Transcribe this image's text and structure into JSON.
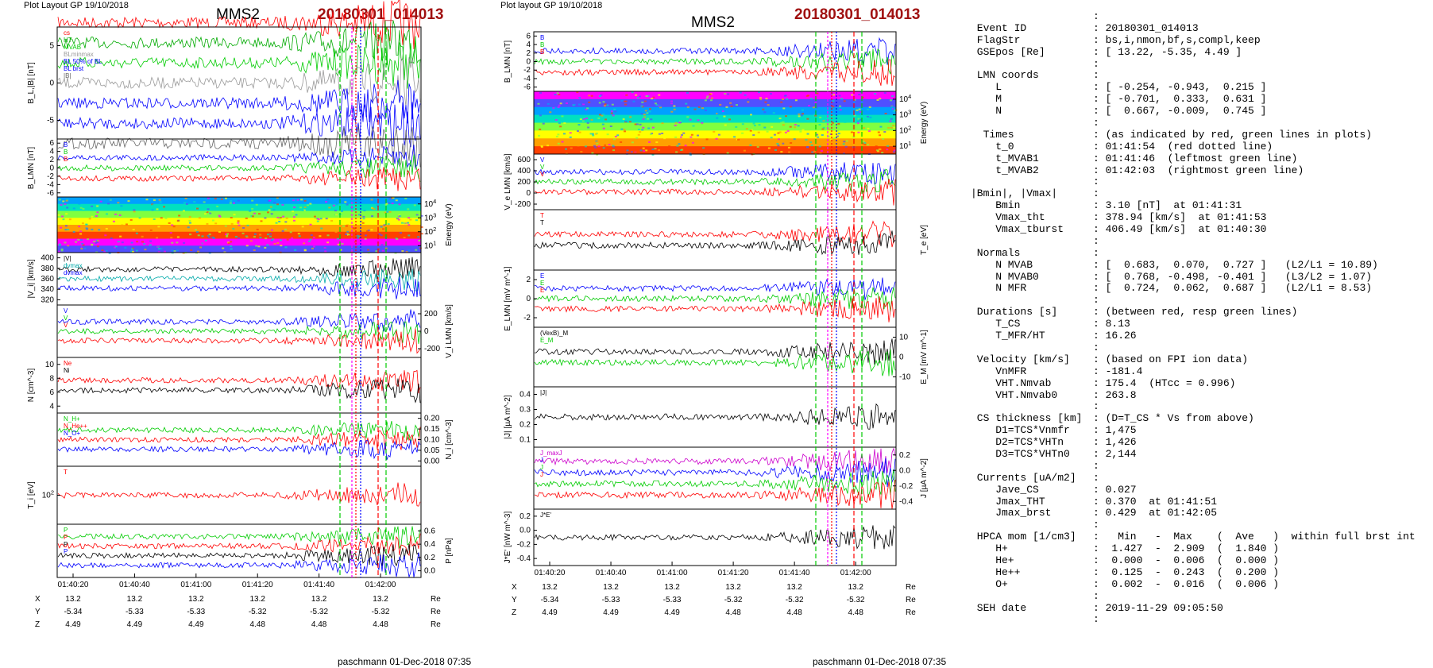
{
  "left": {
    "layout_label": "Plot Layout GP 19/10/2018",
    "spacecraft": "MMS2",
    "event": "20180301_014013",
    "footer": "paschmann 01-Dec-2018 07:35",
    "panels": [
      {
        "ylabel": "B_L,|B| [nT]",
        "yticks": [
          "5",
          "0",
          "-5"
        ],
        "ylim": [
          -6.5,
          8
        ],
        "legend": [
          {
            "text": "cs",
            "color": "#ff0000"
          },
          {
            "text": "HT",
            "color": "#00aa00"
          },
          {
            "text": "MVAB",
            "color": "#00cc00"
          },
          {
            "text": "BLminmax",
            "color": "#999999"
          },
          {
            "text": "BL 50% of BL",
            "color": "#0000ff"
          },
          {
            "text": "BL brst",
            "color": "#0000ff"
          },
          {
            "text": "|B|",
            "color": "#666666"
          }
        ],
        "right": false
      },
      {
        "ylabel": "B_LMN [nT]",
        "yticks": [
          "6",
          "4",
          "2",
          "0",
          "-2",
          "-4",
          "-6"
        ],
        "ylim": [
          -6.5,
          6.5
        ],
        "legend": [
          {
            "text": "B",
            "color": "#0000ff"
          },
          {
            "text": "B",
            "color": "#00cc00"
          },
          {
            "text": "B",
            "color": "#ff0000"
          }
        ],
        "right": false
      },
      {
        "ylabel": "Energy (eV)",
        "yticks": [
          "10^4",
          "10^3",
          "10^2",
          "10^1"
        ],
        "right": true,
        "spectrogram": true
      },
      {
        "ylabel": "|V_i| [km/s]",
        "yticks": [
          "400",
          "380",
          "360",
          "340",
          "320"
        ],
        "ylim": [
          315,
          405
        ],
        "legend": [
          {
            "text": "|V|",
            "color": "#000000"
          },
          {
            "text": "dvmax",
            "color": "#00aaaa"
          },
          {
            "text": "dvmax",
            "color": "#0000ff"
          }
        ],
        "right": false
      },
      {
        "ylabel": "V_i LMN [km/s]",
        "yticks": [
          "200",
          "0",
          "-200"
        ],
        "ylim": [
          -300,
          300
        ],
        "legend": [
          {
            "text": "V",
            "color": "#0000ff"
          },
          {
            "text": "V",
            "color": "#00cc00"
          },
          {
            "text": "V",
            "color": "#ff0000"
          }
        ],
        "right": true
      },
      {
        "ylabel": "N [cm^-3]",
        "yticks": [
          "10",
          "8",
          "6",
          "4"
        ],
        "ylim": [
          3,
          11
        ],
        "legend": [
          {
            "text": "Ne",
            "color": "#ff0000"
          },
          {
            "text": "Ni",
            "color": "#000000"
          }
        ],
        "right": false
      },
      {
        "ylabel": "N_i [cm^-3]",
        "yticks": [
          "0.20",
          "0.15",
          "0.10",
          "0.05",
          "0.00"
        ],
        "ylim": [
          -0.02,
          0.23
        ],
        "legend": [
          {
            "text": "N_H+",
            "color": "#00cc00"
          },
          {
            "text": "N_He++",
            "color": "#ff0000"
          },
          {
            "text": "N_O+",
            "color": "#0000ff"
          }
        ],
        "right": true
      },
      {
        "ylabel": "T_i [eV]",
        "yticks": [
          "10^2"
        ],
        "legend": [
          {
            "text": "T",
            "color": "#ff0000"
          }
        ],
        "right": false
      },
      {
        "ylabel": "P [nPa]",
        "yticks": [
          "0.6",
          "0.4",
          "0.2",
          "0.0"
        ],
        "ylim": [
          0,
          0.62
        ],
        "legend": [
          {
            "text": "P",
            "color": "#00cc00"
          },
          {
            "text": "P",
            "color": "#ff0000"
          },
          {
            "text": "P",
            "color": "#000000"
          },
          {
            "text": "P",
            "color": "#0000ff"
          }
        ],
        "right": true
      }
    ],
    "time_ticks": [
      "01:40:20",
      "01:40:40",
      "01:41:00",
      "01:41:20",
      "01:41:40",
      "01:42:00"
    ],
    "pos_rows": [
      {
        "label": "X",
        "values": [
          "13.2",
          "13.2",
          "13.2",
          "13.2",
          "13.2",
          "13.2"
        ],
        "unit": "Re"
      },
      {
        "label": "Y",
        "values": [
          "-5.34",
          "-5.33",
          "-5.33",
          "-5.32",
          "-5.32",
          "-5.32"
        ],
        "unit": "Re"
      },
      {
        "label": "Z",
        "values": [
          "4.49",
          "4.49",
          "4.49",
          "4.48",
          "4.48",
          "4.48"
        ],
        "unit": "Re"
      }
    ]
  },
  "middle": {
    "layout_label": "Plot layout GP 19/10/2018",
    "spacecraft": "MMS2",
    "event": "20180301_014013",
    "footer": "paschmann 01-Dec-2018 07:35",
    "panels": [
      {
        "ylabel": "B_LMN [nT]",
        "yticks": [
          "6",
          "4",
          "2",
          "0",
          "-2",
          "-4",
          "-6"
        ],
        "ylim": [
          -6.5,
          6.5
        ],
        "legend": [
          {
            "text": "B",
            "color": "#0000ff"
          },
          {
            "text": "B",
            "color": "#00cc00"
          },
          {
            "text": "B",
            "color": "#ff0000"
          }
        ],
        "right": false
      },
      {
        "ylabel": "Energy (eV)",
        "yticks": [
          "10^4",
          "10^3",
          "10^2",
          "10^1"
        ],
        "right": true,
        "spectrogram": true
      },
      {
        "ylabel": "V_e LMN [km/s]",
        "yticks": [
          "600",
          "400",
          "200",
          "0",
          "-200"
        ],
        "ylim": [
          -350,
          650
        ],
        "legend": [
          {
            "text": "V",
            "color": "#0000ff"
          },
          {
            "text": "V",
            "color": "#00cc00"
          },
          {
            "text": "V",
            "color": "#ff0000"
          }
        ],
        "right": false
      },
      {
        "ylabel": "T_e [eV]",
        "yticks": [],
        "legend": [
          {
            "text": "T",
            "color": "#ff0000"
          },
          {
            "text": "T",
            "color": "#000000"
          }
        ],
        "right": true
      },
      {
        "ylabel": "E_LMN [mV m^-1]",
        "yticks": [
          "2",
          "0",
          "-2"
        ],
        "ylim": [
          -3.2,
          3.2
        ],
        "legend": [
          {
            "text": "E",
            "color": "#0000ff"
          },
          {
            "text": "E",
            "color": "#00cc00"
          },
          {
            "text": "E",
            "color": "#ff0000"
          }
        ],
        "right": false
      },
      {
        "ylabel": "E_M [mV m^-1]",
        "yticks": [
          "10",
          "0",
          "-10"
        ],
        "ylim": [
          -16,
          16
        ],
        "legend": [
          {
            "text": "(VexB)_M",
            "color": "#000000"
          },
          {
            "text": "E_M",
            "color": "#00cc00"
          }
        ],
        "right": true
      },
      {
        "ylabel": "|J| [µA m^-2]",
        "yticks": [
          "0.4",
          "0.3",
          "0.2",
          "0.1"
        ],
        "ylim": [
          0,
          0.43
        ],
        "legend": [
          {
            "text": "|J|",
            "color": "#000000"
          }
        ],
        "right": false
      },
      {
        "ylabel": "J [µA m^-2]",
        "yticks": [
          "0.2",
          "0.0",
          "-0.2",
          "-0.4"
        ],
        "ylim": [
          -0.5,
          0.3
        ],
        "legend": [
          {
            "text": "J_maxJ",
            "color": "#cc00cc"
          },
          {
            "text": "J",
            "color": "#0000ff"
          },
          {
            "text": "J",
            "color": "#00cc00"
          },
          {
            "text": "J",
            "color": "#ff0000"
          }
        ],
        "right": true
      },
      {
        "ylabel": "J*E' [nW m^-3]",
        "yticks": [
          "0.2",
          "0.0",
          "-0.2",
          "-0.4"
        ],
        "ylim": [
          -0.55,
          0.25
        ],
        "legend": [
          {
            "text": "J*E'",
            "color": "#000000"
          }
        ],
        "right": false
      }
    ],
    "time_ticks": [
      "01:40:20",
      "01:40:40",
      "01:41:00",
      "01:41:20",
      "01:41:40",
      "01:42:00"
    ],
    "pos_rows": [
      {
        "label": "X",
        "values": [
          "13.2",
          "13.2",
          "13.2",
          "13.2",
          "13.2",
          "13.2"
        ],
        "unit": "Re"
      },
      {
        "label": "Y",
        "values": [
          "-5.34",
          "-5.33",
          "-5.33",
          "-5.32",
          "-5.32",
          "-5.32"
        ],
        "unit": "Re"
      },
      {
        "label": "Z",
        "values": [
          "4.49",
          "4.49",
          "4.49",
          "4.48",
          "4.48",
          "4.48"
        ],
        "unit": "Re"
      }
    ]
  },
  "info": {
    "lines": [
      {
        "k": "",
        "v": ":"
      },
      {
        "k": " Event ID",
        "v": ": 20180301_014013"
      },
      {
        "k": " FlagStr",
        "v": ": bs,i,nmon,bf,s,compl,keep"
      },
      {
        "k": " GSEpos [Re]",
        "v": ": [ 13.22, -5.35, 4.49 ]"
      },
      {
        "k": "",
        "v": ":"
      },
      {
        "k": " LMN coords",
        "v": ":"
      },
      {
        "k": "    L",
        "v": ": [ -0.254, -0.943,  0.215 ]"
      },
      {
        "k": "    M",
        "v": ": [ -0.701,  0.333,  0.631 ]"
      },
      {
        "k": "    N",
        "v": ": [  0.667, -0.009,  0.745 ]"
      },
      {
        "k": "",
        "v": ":"
      },
      {
        "k": "  Times",
        "v": ": (as indicated by red, green lines in plots)"
      },
      {
        "k": "    t_0",
        "v": ": 01:41:54  (red dotted line)"
      },
      {
        "k": "    t_MVAB1",
        "v": ": 01:41:46  (leftmost green line)"
      },
      {
        "k": "    t_MVAB2",
        "v": ": 01:42:03  (rightmost green line)"
      },
      {
        "k": "",
        "v": ":"
      },
      {
        "k": "|Bmin|, |Vmax|",
        "v": ":"
      },
      {
        "k": "    Bmin",
        "v": ": 3.10 [nT]  at 01:41:31"
      },
      {
        "k": "    Vmax_tht",
        "v": ": 378.94 [km/s]  at 01:41:53"
      },
      {
        "k": "    Vmax_tburst",
        "v": ": 406.49 [km/s]  at 01:40:30"
      },
      {
        "k": "",
        "v": ":"
      },
      {
        "k": " Normals",
        "v": ":"
      },
      {
        "k": "    N MVAB",
        "v": ": [  0.683,  0.070,  0.727 ]   (L2/L1 = 10.89)"
      },
      {
        "k": "    N MVAB0",
        "v": ": [  0.768, -0.498, -0.401 ]   (L3/L2 = 1.07)"
      },
      {
        "k": "    N MFR",
        "v": ": [  0.724,  0.062,  0.687 ]   (L2/L1 = 8.53)"
      },
      {
        "k": "",
        "v": ":"
      },
      {
        "k": " Durations [s]",
        "v": ": (between red, resp green lines)"
      },
      {
        "k": "    T_CS",
        "v": ": 8.13"
      },
      {
        "k": "    T_MFR/HT",
        "v": ": 16.26"
      },
      {
        "k": "",
        "v": ":"
      },
      {
        "k": " Velocity [km/s]",
        "v": ": (based on FPI ion data)"
      },
      {
        "k": "    VnMFR",
        "v": ": -181.4"
      },
      {
        "k": "    VHT.Nmvab",
        "v": ": 175.4  (HTcc = 0.996)"
      },
      {
        "k": "    VHT.Nmvab0",
        "v": ": 263.8"
      },
      {
        "k": "",
        "v": ":"
      },
      {
        "k": " CS thickness [km]",
        "v": ": (D=T_CS * Vs from above)"
      },
      {
        "k": "    D1=TCS*Vnmfr",
        "v": ": 1,475"
      },
      {
        "k": "    D2=TCS*VHTn",
        "v": ": 1,426"
      },
      {
        "k": "    D3=TCS*VHTn0",
        "v": ": 2,144"
      },
      {
        "k": "",
        "v": ":"
      },
      {
        "k": " Currents [uA/m2]",
        "v": ":"
      },
      {
        "k": "    Jave_CS",
        "v": ": 0.027"
      },
      {
        "k": "    Jmax_THT",
        "v": ": 0.370  at 01:41:51"
      },
      {
        "k": "    Jmax_brst",
        "v": ": 0.429  at 01:42:05"
      },
      {
        "k": "",
        "v": ":"
      },
      {
        "k": " HPCA mom [1/cm3]",
        "v": ":   Min   -  Max    (  Ave   )  within full brst int"
      },
      {
        "k": "    H+",
        "v": ":  1.427  -  2.909  (  1.840 )"
      },
      {
        "k": "    He+",
        "v": ":  0.000  -  0.006  (  0.000 )"
      },
      {
        "k": "    He++",
        "v": ":  0.125  -  0.243  (  0.200 )"
      },
      {
        "k": "    O+",
        "v": ":  0.002  -  0.016  (  0.006 )"
      },
      {
        "k": "",
        "v": ":"
      },
      {
        "k": " SEH date",
        "v": ": 2019-11-29 09:05:50"
      },
      {
        "k": "",
        "v": ":"
      }
    ]
  },
  "colors": {
    "red": "#ff0000",
    "green": "#00cc00",
    "blue": "#0000ff",
    "dark_red": "#a01010"
  }
}
